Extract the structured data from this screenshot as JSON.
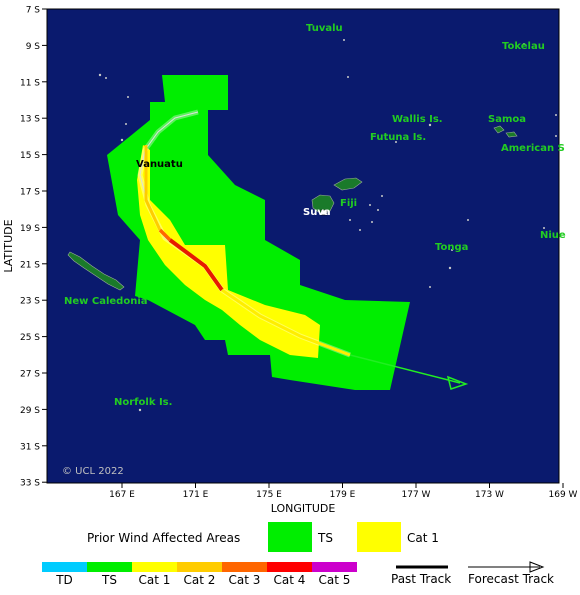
{
  "map": {
    "lat_labels": [
      "7 S",
      "9 S",
      "11 S",
      "13 S",
      "15 S",
      "17 S",
      "19 S",
      "21 S",
      "23 S",
      "25 S",
      "27 S",
      "29 S",
      "31 S",
      "33 S"
    ],
    "lon_labels": [
      "167 E",
      "171 E",
      "175 E",
      "179 E",
      "177 W",
      "173 W",
      "169 W"
    ],
    "x_axis_title": "LONGITUDE",
    "y_axis_title": "LATITUDE",
    "copyright": "© UCL 2022",
    "places": [
      {
        "name": "Tuvalu"
      },
      {
        "name": "Tokelau"
      },
      {
        "name": "Wallis Is."
      },
      {
        "name": "Samoa"
      },
      {
        "name": "Futuna Is."
      },
      {
        "name": "American S"
      },
      {
        "name": "Vanuatu"
      },
      {
        "name": "Fiji"
      },
      {
        "name": "Suva"
      },
      {
        "name": "Niue"
      },
      {
        "name": "Tonga"
      },
      {
        "name": "New Caledonia"
      },
      {
        "name": "Norfolk Is."
      }
    ],
    "colors": {
      "ocean": "#0a1a6e",
      "land": "#1a7a2a",
      "label": "#22cc22",
      "ts": "#00ee00",
      "cat1": "#ffff00"
    }
  },
  "legend": {
    "prior_title": "Prior Wind Affected Areas",
    "prior_items": [
      {
        "label": "TS",
        "color": "#00ee00"
      },
      {
        "label": "Cat 1",
        "color": "#ffff00"
      }
    ],
    "scale": [
      {
        "label": "TD",
        "color": "#00ccff"
      },
      {
        "label": "TS",
        "color": "#00ee00"
      },
      {
        "label": "Cat 1",
        "color": "#ffff00"
      },
      {
        "label": "Cat 2",
        "color": "#ffcc00"
      },
      {
        "label": "Cat 3",
        "color": "#ff6600"
      },
      {
        "label": "Cat 4",
        "color": "#ff0000"
      },
      {
        "label": "Cat 5",
        "color": "#cc00cc"
      }
    ],
    "past_track": "Past Track",
    "forecast_track": "Forecast Track"
  }
}
